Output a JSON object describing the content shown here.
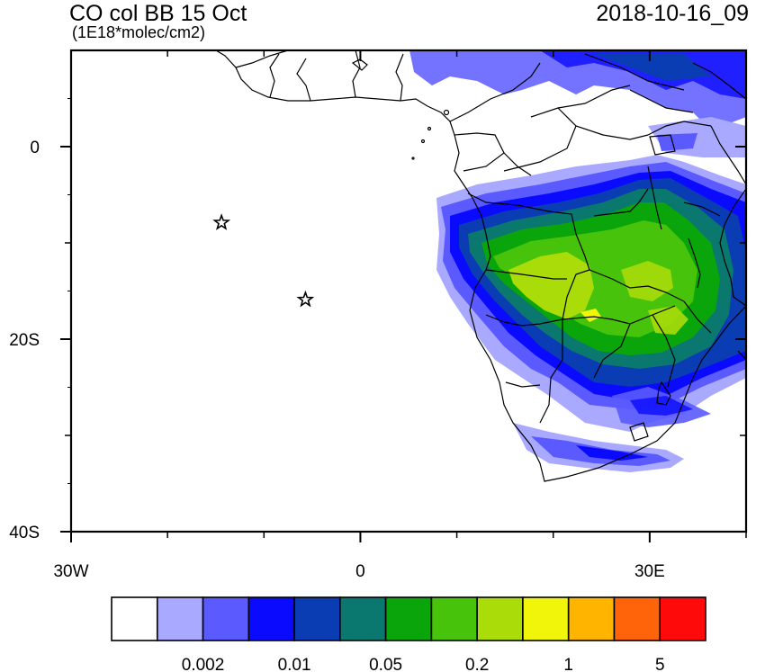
{
  "header": {
    "title": "CO col BB 15 Oct",
    "units": "(1E18*molec/cm2)",
    "timestamp": "2018-10-16_09"
  },
  "map": {
    "lon_range": [
      -30,
      40
    ],
    "lat_range": [
      -40,
      10
    ],
    "x_ticks": [
      {
        "lon": -30,
        "label": "30W"
      },
      {
        "lon": 0,
        "label": "0"
      },
      {
        "lon": 30,
        "label": "30E"
      }
    ],
    "y_ticks": [
      {
        "lat": 0,
        "label": "0"
      },
      {
        "lat": -20,
        "label": "20S"
      },
      {
        "lat": -40,
        "label": "40S"
      }
    ],
    "minor_x_ticks": [
      -20,
      -10,
      10,
      20,
      40
    ],
    "minor_y_ticks": [
      -10,
      -30
    ],
    "markers": [
      {
        "name": "star-marker-ascension",
        "lon": -14.4,
        "lat": -7.9
      },
      {
        "name": "star-marker-st-helena",
        "lon": -5.7,
        "lat": -15.9
      }
    ]
  },
  "colorbar": {
    "colors": [
      "#ffffff",
      "#a9a9ff",
      "#5a5aff",
      "#0a0aff",
      "#0a3cb4",
      "#0a786e",
      "#0aa50a",
      "#46c30a",
      "#aadc0a",
      "#f0f50a",
      "#ffb400",
      "#ff640a",
      "#ff0a0a"
    ],
    "labels": [
      {
        "after_box": 2,
        "text": "0.002"
      },
      {
        "after_box": 4,
        "text": "0.01"
      },
      {
        "after_box": 6,
        "text": "0.05"
      },
      {
        "after_box": 8,
        "text": "0.2"
      },
      {
        "after_box": 10,
        "text": "1"
      },
      {
        "after_box": 12,
        "text": "5"
      }
    ]
  }
}
